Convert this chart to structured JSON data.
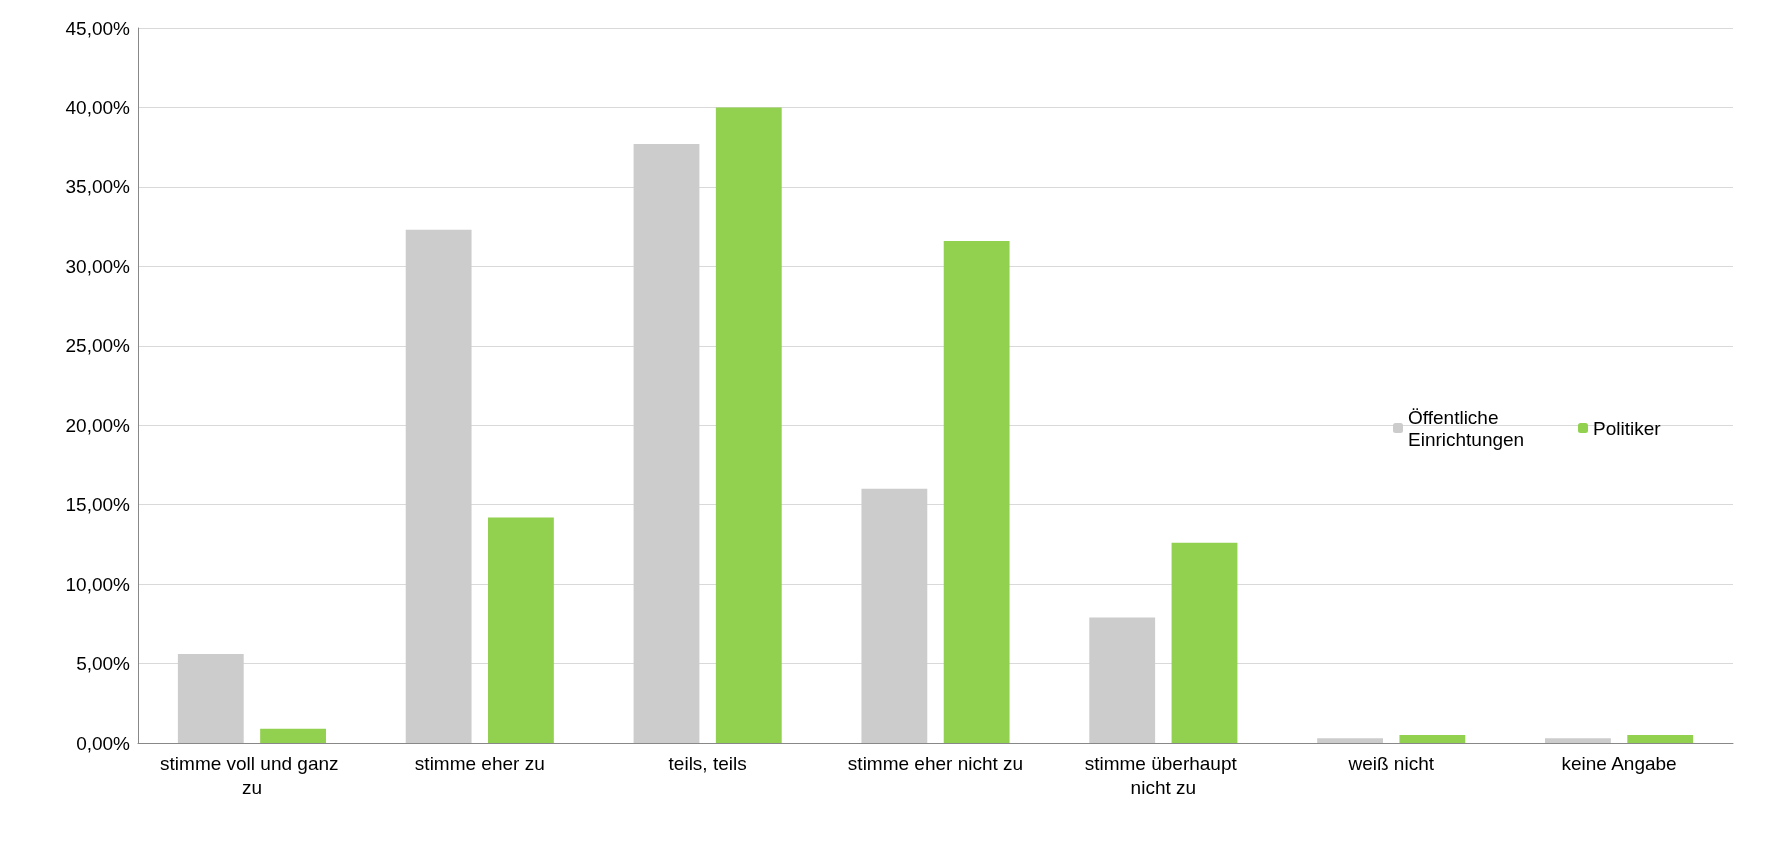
{
  "chart_data": {
    "type": "bar",
    "categories": [
      "stimme voll und ganz zu",
      "stimme eher zu",
      "teils, teils",
      "stimme eher nicht zu",
      "stimme überhaupt nicht zu",
      "weiß nicht",
      "keine Angabe"
    ],
    "series": [
      {
        "name": "Öffentliche Einrichtungen",
        "color": "#cccccc",
        "values": [
          5.6,
          32.3,
          37.7,
          16.0,
          7.9,
          0.3,
          0.3
        ]
      },
      {
        "name": "Politiker",
        "color": "#92d050",
        "values": [
          0.9,
          14.2,
          40.0,
          31.6,
          12.6,
          0.5,
          0.5
        ]
      }
    ],
    "ylim": [
      0,
      45
    ],
    "yticks": [
      {
        "value": 0,
        "label": "0,00%"
      },
      {
        "value": 5,
        "label": "5,00%"
      },
      {
        "value": 10,
        "label": "10,00%"
      },
      {
        "value": 15,
        "label": "15,00%"
      },
      {
        "value": 20,
        "label": "20,00%"
      },
      {
        "value": 25,
        "label": "25,00%"
      },
      {
        "value": 30,
        "label": "30,00%"
      },
      {
        "value": 35,
        "label": "35,00%"
      },
      {
        "value": 40,
        "label": "40,00%"
      },
      {
        "value": 45,
        "label": "45,00%"
      }
    ],
    "grid": "y",
    "legend": "right"
  }
}
